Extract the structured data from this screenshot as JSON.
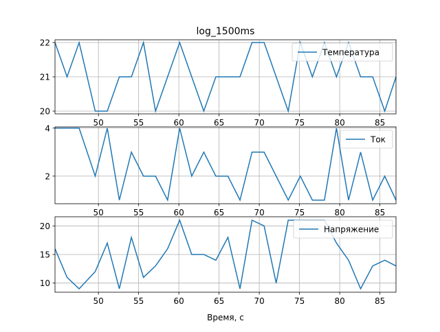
{
  "figure": {
    "title": "log_1500ms",
    "xlabel": "Время, с"
  },
  "chart_data": [
    {
      "type": "line",
      "title": "log_1500ms",
      "xlim": [
        44.6,
        87.0
      ],
      "ylim": [
        19.92,
        22.08
      ],
      "xticks": [
        50,
        55,
        60,
        65,
        70,
        75,
        80,
        85
      ],
      "yticks": [
        20,
        21,
        22
      ],
      "grid": true,
      "legend_position": "top-right",
      "series": [
        {
          "name": "Температура",
          "color": "#1f77b4",
          "x": [
            44.6,
            46.1,
            47.6,
            49.6,
            51.1,
            52.6,
            54.1,
            55.6,
            57.1,
            58.6,
            60.1,
            61.6,
            63.1,
            64.6,
            66.1,
            67.6,
            69.1,
            70.6,
            72.1,
            73.6,
            75.1,
            76.6,
            78.1,
            79.6,
            81.1,
            82.6,
            84.1,
            85.6,
            87.0
          ],
          "y": [
            22,
            21,
            22,
            20,
            20,
            21,
            21,
            22,
            20,
            21,
            22,
            21,
            20,
            21,
            21,
            21,
            22,
            22,
            21,
            20,
            22,
            21,
            22,
            21,
            22,
            21,
            21,
            20,
            21
          ]
        }
      ]
    },
    {
      "type": "line",
      "xlim": [
        44.6,
        87.0
      ],
      "ylim": [
        0.85,
        4.05
      ],
      "xticks": [
        50,
        55,
        60,
        65,
        70,
        75,
        80,
        85
      ],
      "yticks": [
        2,
        4
      ],
      "grid": true,
      "legend_position": "top-right",
      "series": [
        {
          "name": "Ток",
          "color": "#1f77b4",
          "x": [
            44.6,
            46.1,
            47.6,
            49.6,
            51.1,
            52.6,
            54.1,
            55.6,
            57.1,
            58.6,
            60.1,
            61.6,
            63.1,
            64.6,
            66.1,
            67.6,
            69.1,
            70.6,
            72.1,
            73.6,
            75.1,
            76.6,
            78.1,
            79.6,
            81.1,
            82.6,
            84.1,
            85.6,
            87.0
          ],
          "y": [
            4,
            4,
            4,
            2,
            4,
            1,
            3,
            2,
            2,
            1,
            4,
            2,
            3,
            2,
            2,
            1,
            3,
            3,
            2,
            1,
            2,
            1,
            1,
            4,
            1,
            3,
            1,
            2,
            1
          ]
        }
      ]
    },
    {
      "type": "line",
      "xlim": [
        44.6,
        87.0
      ],
      "ylim": [
        8.4,
        21.6
      ],
      "xticks": [
        50,
        55,
        60,
        65,
        70,
        75,
        80,
        85
      ],
      "yticks": [
        10,
        15,
        20
      ],
      "grid": true,
      "legend_position": "top-right",
      "xlabel": "Время, с",
      "series": [
        {
          "name": "Напряжение",
          "color": "#1f77b4",
          "x": [
            44.6,
            46.1,
            47.6,
            49.6,
            51.1,
            52.6,
            54.1,
            55.6,
            57.1,
            58.6,
            60.1,
            61.6,
            63.1,
            64.6,
            66.1,
            67.6,
            69.1,
            70.6,
            72.1,
            73.6,
            75.1,
            76.6,
            78.1,
            79.6,
            81.1,
            82.6,
            84.1,
            85.6,
            87.0
          ],
          "y": [
            16,
            11,
            9,
            12,
            17,
            9,
            18,
            11,
            13,
            16,
            21,
            15,
            15,
            14,
            18,
            9,
            21,
            20,
            10,
            21,
            21,
            21,
            21,
            17,
            14,
            9,
            13,
            14,
            13
          ]
        }
      ]
    }
  ]
}
